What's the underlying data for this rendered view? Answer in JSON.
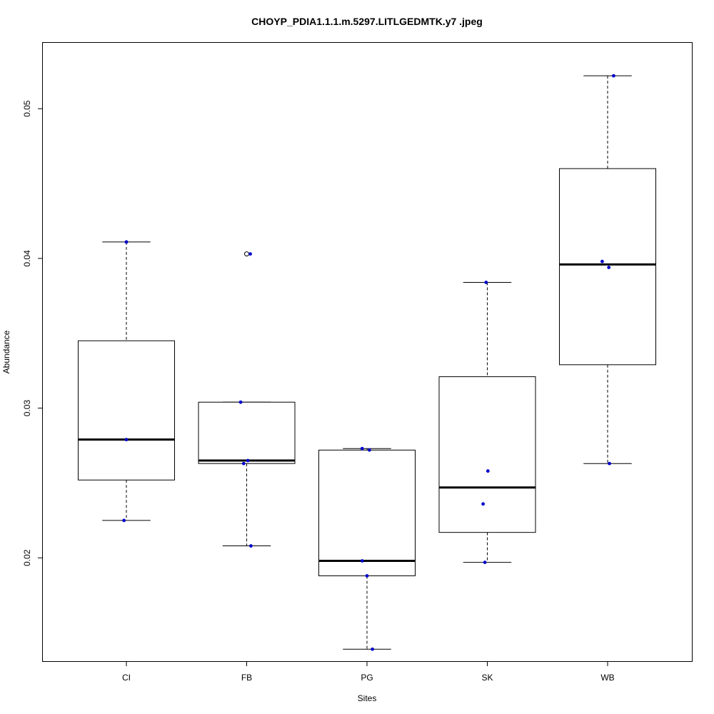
{
  "chart_data": {
    "type": "box",
    "title": "CHOYP_PDIA1.1.1.m.5297.LITLGEDMTK.y7 .jpeg",
    "xlabel": "Sites",
    "ylabel": "Abundance",
    "categories": [
      "CI",
      "FB",
      "PG",
      "SK",
      "WB"
    ],
    "yticks": [
      0.02,
      0.03,
      0.04,
      0.05
    ],
    "ytick_labels": [
      "0.02",
      "0.03",
      "0.04",
      "0.05"
    ],
    "ylim": [
      0.0131,
      0.0544
    ],
    "boxes": [
      {
        "name": "CI",
        "whisker_low": 0.0225,
        "q1": 0.0252,
        "median": 0.0279,
        "q3": 0.0345,
        "whisker_high": 0.0411,
        "outliers": []
      },
      {
        "name": "FB",
        "whisker_low": 0.0208,
        "q1": 0.0263,
        "median": 0.0265,
        "q3": 0.0304,
        "whisker_high": 0.0304,
        "outliers": [
          0.0403
        ]
      },
      {
        "name": "PG",
        "whisker_low": 0.0139,
        "q1": 0.0188,
        "median": 0.0198,
        "q3": 0.0272,
        "whisker_high": 0.0273,
        "outliers": []
      },
      {
        "name": "SK",
        "whisker_low": 0.0197,
        "q1": 0.0217,
        "median": 0.0247,
        "q3": 0.0321,
        "whisker_high": 0.0384,
        "outliers": []
      },
      {
        "name": "WB",
        "whisker_low": 0.0263,
        "q1": 0.0329,
        "median": 0.0396,
        "q3": 0.046,
        "whisker_high": 0.0522,
        "outliers": []
      }
    ],
    "points": [
      {
        "cat": "CI",
        "jitter": 0.0,
        "y": 0.0411
      },
      {
        "cat": "CI",
        "jitter": 0.0,
        "y": 0.0279
      },
      {
        "cat": "CI",
        "jitter": -0.04,
        "y": 0.0225
      },
      {
        "cat": "FB",
        "jitter": 0.06,
        "y": 0.0403
      },
      {
        "cat": "FB",
        "jitter": -0.1,
        "y": 0.0304
      },
      {
        "cat": "FB",
        "jitter": 0.02,
        "y": 0.0265
      },
      {
        "cat": "FB",
        "jitter": -0.05,
        "y": 0.0263
      },
      {
        "cat": "FB",
        "jitter": 0.07,
        "y": 0.0208
      },
      {
        "cat": "PG",
        "jitter": -0.08,
        "y": 0.0273
      },
      {
        "cat": "PG",
        "jitter": 0.04,
        "y": 0.0272
      },
      {
        "cat": "PG",
        "jitter": -0.08,
        "y": 0.0198
      },
      {
        "cat": "PG",
        "jitter": 0.0,
        "y": 0.0188
      },
      {
        "cat": "PG",
        "jitter": 0.09,
        "y": 0.0139
      },
      {
        "cat": "SK",
        "jitter": -0.02,
        "y": 0.0384
      },
      {
        "cat": "SK",
        "jitter": 0.01,
        "y": 0.0258
      },
      {
        "cat": "SK",
        "jitter": -0.07,
        "y": 0.0236
      },
      {
        "cat": "SK",
        "jitter": -0.04,
        "y": 0.0197
      },
      {
        "cat": "WB",
        "jitter": 0.1,
        "y": 0.0522
      },
      {
        "cat": "WB",
        "jitter": -0.09,
        "y": 0.0398
      },
      {
        "cat": "WB",
        "jitter": 0.02,
        "y": 0.0394
      },
      {
        "cat": "WB",
        "jitter": 0.03,
        "y": 0.0263
      }
    ],
    "point_color": "#0000cc",
    "outlier_color": "#000000",
    "grid": false,
    "legend": false
  }
}
